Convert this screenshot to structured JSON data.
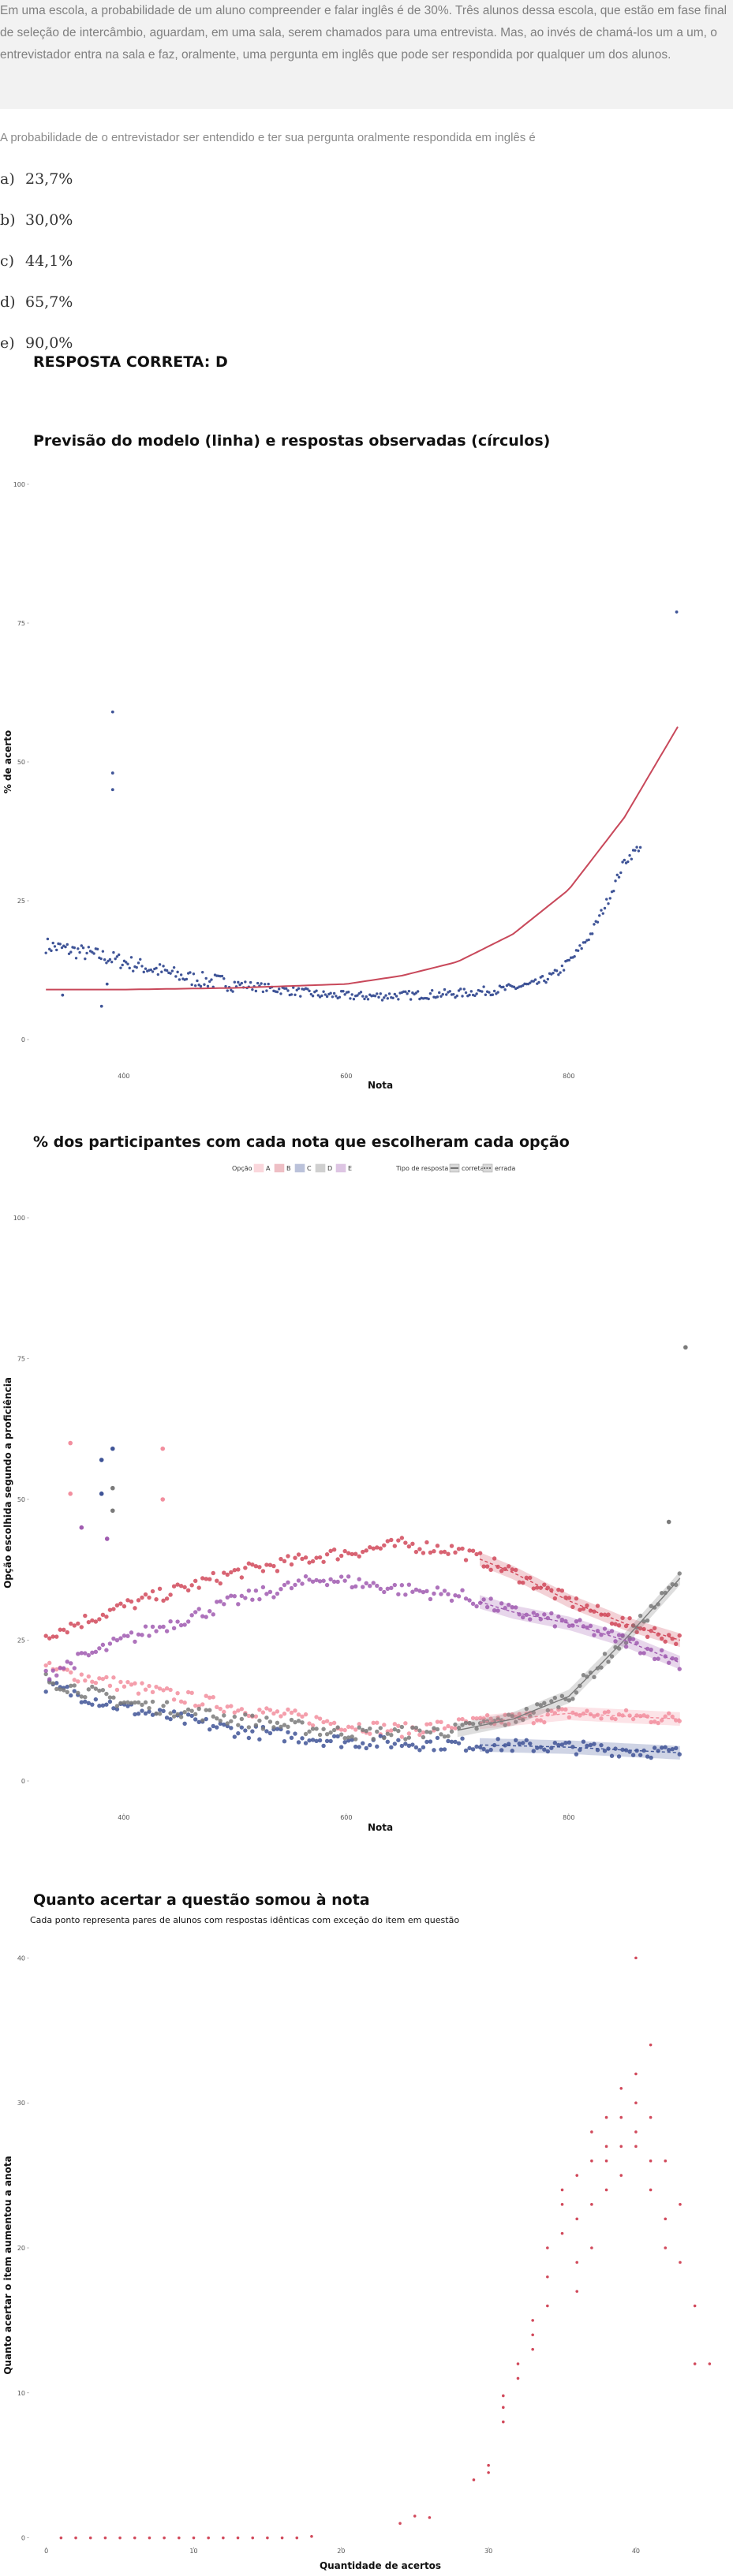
{
  "question": {
    "text": "Em uma escola, a probabilidade de um aluno compreender e falar inglês é de 30%. Três alunos dessa escola, que estão em fase final de seleção de intercâmbio, aguardam, em uma sala, serem chamados para uma entrevista. Mas, ao invés de chamá-los um a um, o entrevistador entra na sala e faz, oralmente, uma pergunta em inglês que pode ser respondida por qualquer um dos alunos.",
    "prompt": "A probabilidade de o entrevistador ser entendido e ter sua pergunta oralmente respondida em inglês é",
    "options": [
      {
        "letter": "a)",
        "text": "23,7%"
      },
      {
        "letter": "b)",
        "text": "30,0%"
      },
      {
        "letter": "c)",
        "text": "44,1%"
      },
      {
        "letter": "d)",
        "text": "65,7%"
      },
      {
        "letter": "e)",
        "text": "90,0%"
      }
    ],
    "answer": "RESPOSTA CORRETA: D"
  },
  "colors": {
    "A": "#f28e9e",
    "B": "#d1495b",
    "C": "#3f5497",
    "D": "#7a7a7a",
    "E": "#a05bb0",
    "model": "#c8485a",
    "obs": "#3f5497"
  },
  "chart_data": [
    {
      "type": "scatter",
      "title": "Previsão do modelo (linha) e respostas observadas (círculos)",
      "xlabel": "Nota",
      "ylabel": "% de acerto",
      "xticks": [
        "400",
        "600",
        "800"
      ],
      "yticks": [
        "0",
        "25",
        "50",
        "75",
        "100"
      ],
      "xlim": [
        310,
        920
      ],
      "ylim": [
        0,
        100
      ],
      "series": [
        {
          "role": "model-line",
          "points": [
            [
              330,
              9
            ],
            [
              400,
              9
            ],
            [
              500,
              9.3
            ],
            [
              600,
              10
            ],
            [
              650,
              11.5
            ],
            [
              700,
              14
            ],
            [
              750,
              19
            ],
            [
              800,
              27
            ],
            [
              850,
              40
            ],
            [
              900,
              57
            ]
          ]
        },
        {
          "role": "observed-points",
          "curve": [
            [
              330,
              17
            ],
            [
              380,
              15
            ],
            [
              420,
              13
            ],
            [
              460,
              11
            ],
            [
              500,
              10
            ],
            [
              540,
              9
            ],
            [
              580,
              8
            ],
            [
              620,
              7.8
            ],
            [
              660,
              8
            ],
            [
              700,
              8.3
            ],
            [
              740,
              9
            ],
            [
              770,
              10
            ],
            [
              790,
              12
            ],
            [
              805,
              15
            ],
            [
              820,
              19
            ],
            [
              835,
              25
            ],
            [
              850,
              32
            ],
            [
              865,
              35
            ]
          ],
          "outliers": [
            [
              390,
              59
            ],
            [
              390,
              48
            ],
            [
              390,
              45
            ],
            [
              385,
              10
            ],
            [
              380,
              6
            ],
            [
              345,
              8
            ],
            [
              897,
              77
            ]
          ]
        }
      ]
    },
    {
      "type": "scatter",
      "title": "% dos participantes com cada nota que escolheram cada opção",
      "xlabel": "Nota",
      "ylabel": "Opção escolhida segundo a proficiência",
      "xticks": [
        "400",
        "600",
        "800"
      ],
      "yticks": [
        "0",
        "25",
        "50",
        "75",
        "100"
      ],
      "xlim": [
        310,
        920
      ],
      "ylim": [
        0,
        100
      ],
      "legend": {
        "option_title": "Opção",
        "options": [
          "A",
          "B",
          "C",
          "D",
          "E"
        ],
        "type_title": "Tipo de resposta",
        "types": [
          "correta",
          "errada"
        ]
      },
      "series": [
        {
          "name": "A",
          "curve": [
            [
              330,
              20
            ],
            [
              400,
              17
            ],
            [
              500,
              13
            ],
            [
              600,
              10
            ],
            [
              650,
              9
            ],
            [
              700,
              10
            ],
            [
              750,
              11
            ],
            [
              800,
              12
            ],
            [
              850,
              11.5
            ],
            [
              900,
              11
            ]
          ]
        },
        {
          "name": "B",
          "curve": [
            [
              330,
              26
            ],
            [
              400,
              31
            ],
            [
              500,
              37
            ],
            [
              580,
              40
            ],
            [
              650,
              42
            ],
            [
              700,
              41
            ],
            [
              750,
              37
            ],
            [
              800,
              32
            ],
            [
              850,
              28
            ],
            [
              900,
              25
            ]
          ]
        },
        {
          "name": "C",
          "curve": [
            [
              330,
              17
            ],
            [
              400,
              13
            ],
            [
              500,
              9
            ],
            [
              600,
              7
            ],
            [
              700,
              6.5
            ],
            [
              800,
              6
            ],
            [
              850,
              5.5
            ],
            [
              900,
              5
            ]
          ]
        },
        {
          "name": "D",
          "curve": [
            [
              330,
              18
            ],
            [
              400,
              14
            ],
            [
              500,
              11
            ],
            [
              600,
              8.5
            ],
            [
              650,
              8.5
            ],
            [
              700,
              9
            ],
            [
              750,
              11
            ],
            [
              800,
              15
            ],
            [
              850,
              25
            ],
            [
              900,
              36
            ]
          ]
        },
        {
          "name": "E",
          "curve": [
            [
              330,
              19
            ],
            [
              400,
              25
            ],
            [
              500,
              32
            ],
            [
              580,
              36
            ],
            [
              650,
              34
            ],
            [
              700,
              33
            ],
            [
              750,
              30
            ],
            [
              800,
              28
            ],
            [
              850,
              25
            ],
            [
              900,
              21
            ]
          ]
        }
      ],
      "outliers": [
        {
          "name": "A",
          "points": [
            [
              352,
              60
            ],
            [
              352,
              51
            ],
            [
              435,
              59
            ],
            [
              435,
              50
            ]
          ]
        },
        {
          "name": "C",
          "points": [
            [
              380,
              57
            ],
            [
              390,
              59
            ],
            [
              380,
              51
            ]
          ]
        },
        {
          "name": "D",
          "points": [
            [
              390,
              52
            ],
            [
              390,
              48
            ],
            [
              890,
              46
            ],
            [
              905,
              77
            ]
          ]
        },
        {
          "name": "E",
          "points": [
            [
              362,
              45
            ],
            [
              385,
              43
            ]
          ]
        }
      ]
    },
    {
      "type": "scatter",
      "title": "Quanto acertar a questão somou à nota",
      "subtitle": "Cada ponto representa pares de alunos com respostas idênticas com exceção do item em questão",
      "xlabel": "Quantidade de acertos",
      "ylabel": "Quanto acertar o item aumentou a anota",
      "xticks": [
        "0",
        "10",
        "20",
        "30",
        "40"
      ],
      "yticks": [
        "0",
        "10",
        "20",
        "30",
        "40"
      ],
      "xlim": [
        -1,
        44.5
      ],
      "ylim": [
        -1,
        41
      ],
      "points": [
        [
          1,
          0
        ],
        [
          2,
          0
        ],
        [
          3,
          0
        ],
        [
          4,
          0
        ],
        [
          5,
          0
        ],
        [
          6,
          0
        ],
        [
          7,
          0
        ],
        [
          8,
          0
        ],
        [
          9,
          0
        ],
        [
          10,
          0
        ],
        [
          11,
          0
        ],
        [
          12,
          0
        ],
        [
          13,
          0
        ],
        [
          14,
          0
        ],
        [
          15,
          0
        ],
        [
          16,
          0
        ],
        [
          17,
          0
        ],
        [
          18,
          0.1
        ],
        [
          24,
          1
        ],
        [
          25,
          1.5
        ],
        [
          26,
          1.4
        ],
        [
          29,
          4
        ],
        [
          30,
          4.5
        ],
        [
          30,
          5
        ],
        [
          31,
          8
        ],
        [
          31,
          9
        ],
        [
          31,
          9.8
        ],
        [
          32,
          11
        ],
        [
          32,
          12
        ],
        [
          33,
          13
        ],
        [
          33,
          14
        ],
        [
          33,
          15
        ],
        [
          34,
          16
        ],
        [
          34,
          18
        ],
        [
          34,
          20
        ],
        [
          35,
          21
        ],
        [
          35,
          23
        ],
        [
          35,
          24
        ],
        [
          36,
          17
        ],
        [
          36,
          19
        ],
        [
          36,
          22
        ],
        [
          36,
          25
        ],
        [
          37,
          20
        ],
        [
          37,
          23
        ],
        [
          37,
          26
        ],
        [
          37,
          28
        ],
        [
          38,
          24
        ],
        [
          38,
          26
        ],
        [
          38,
          27
        ],
        [
          38,
          29
        ],
        [
          39,
          25
        ],
        [
          39,
          27
        ],
        [
          39,
          29
        ],
        [
          39,
          31
        ],
        [
          40,
          27
        ],
        [
          40,
          28
        ],
        [
          40,
          30
        ],
        [
          40,
          32
        ],
        [
          40,
          40
        ],
        [
          41,
          24
        ],
        [
          41,
          26
        ],
        [
          41,
          29
        ],
        [
          41,
          34
        ],
        [
          42,
          20
        ],
        [
          42,
          22
        ],
        [
          42,
          26
        ],
        [
          43,
          19
        ],
        [
          43,
          23
        ],
        [
          44,
          12
        ],
        [
          44,
          16
        ],
        [
          45,
          12
        ]
      ]
    }
  ]
}
